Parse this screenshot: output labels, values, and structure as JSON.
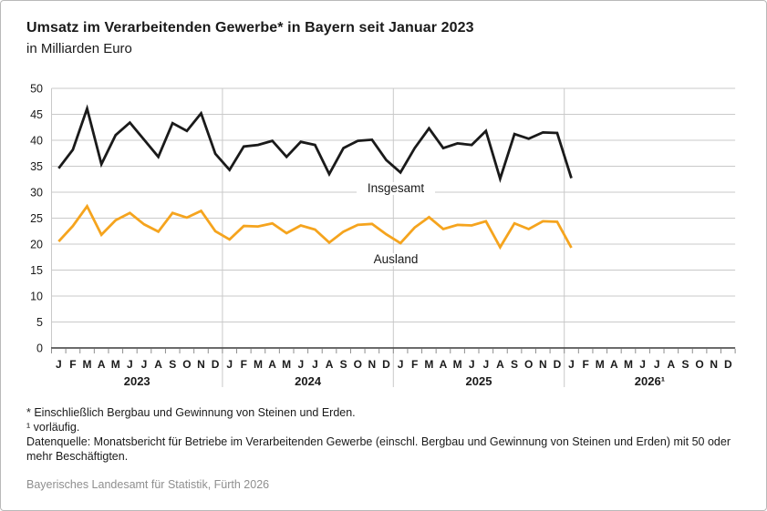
{
  "chart_data": {
    "type": "line",
    "title": "Umsatz im Verarbeitenden Gewerbe* in Bayern seit Januar 2023",
    "subtitle": "in Milliarden Euro",
    "ylim": [
      0,
      50
    ],
    "ytick_step": 5,
    "grid": "horizontal gridlines plus vertical year separators",
    "legend_position": "inline labels on chart",
    "x_month_letters": [
      "J",
      "F",
      "M",
      "A",
      "M",
      "J",
      "J",
      "A",
      "S",
      "O",
      "N",
      "D"
    ],
    "x_years": [
      "2023",
      "2024",
      "2025",
      "2026¹"
    ],
    "x_range_note": "data from Jan 2023 to Jan 2026, axis drawn through Dec 2026",
    "series": [
      {
        "name": "Insgesamt",
        "color": "#1a1a1a",
        "values": [
          34.6,
          38.2,
          46.1,
          35.4,
          41.0,
          43.4,
          40.1,
          36.8,
          43.3,
          41.8,
          45.2,
          37.4,
          34.3,
          38.8,
          39.1,
          39.9,
          36.8,
          39.7,
          39.1,
          33.5,
          38.5,
          39.9,
          40.1,
          36.2,
          33.8,
          38.5,
          42.3,
          38.5,
          39.4,
          39.1,
          41.8,
          32.6,
          41.2,
          40.3,
          41.5,
          41.4,
          32.7
        ]
      },
      {
        "name": "Ausland",
        "color": "#f5a41e",
        "values": [
          20.5,
          23.5,
          27.3,
          21.8,
          24.6,
          26.0,
          23.8,
          22.4,
          26.0,
          25.1,
          26.4,
          22.5,
          20.9,
          23.5,
          23.4,
          24.0,
          22.1,
          23.6,
          22.8,
          20.3,
          22.4,
          23.7,
          23.9,
          21.9,
          20.2,
          23.2,
          25.2,
          22.9,
          23.7,
          23.6,
          24.4,
          19.4,
          24.0,
          22.9,
          24.4,
          24.3,
          19.3
        ]
      }
    ]
  },
  "footnotes": {
    "asterisk": "* Einschließlich Bergbau und Gewinnung von Steinen und Erden.",
    "provisional": "¹ vorläufig.",
    "datasource": "Datenquelle: Monatsbericht für Betriebe im Verarbeitenden Gewerbe (einschl. Bergbau und Gewinnung von Steinen und Erden) mit 50 oder mehr Beschäftigten.",
    "source": "Bayerisches Landesamt für Statistik, Fürth 2026"
  }
}
